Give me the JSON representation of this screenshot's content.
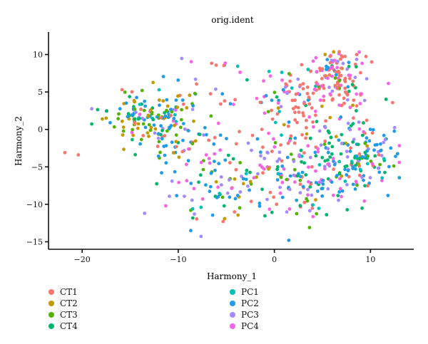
{
  "chart_data": {
    "type": "scatter",
    "title": "orig.ident",
    "xlabel": "Harmony_1",
    "ylabel": "Harmony_2",
    "xlim": [
      -23.5,
      14.5
    ],
    "ylim": [
      -16,
      13
    ],
    "x_ticks": [
      -20,
      -10,
      0,
      10
    ],
    "y_ticks": [
      -15,
      -10,
      -5,
      0,
      5,
      10
    ],
    "x_tick_labels": [
      "−20",
      "−10",
      "0",
      "10"
    ],
    "y_tick_labels": [
      "−15",
      "−10",
      "−5",
      "0",
      "5",
      "10"
    ],
    "grid": false,
    "legend_position": "bottom",
    "series": [
      {
        "name": "CT1",
        "color": "#f8766d"
      },
      {
        "name": "CT2",
        "color": "#c49a00"
      },
      {
        "name": "CT3",
        "color": "#53b400"
      },
      {
        "name": "CT4",
        "color": "#00b56c"
      },
      {
        "name": "PC1",
        "color": "#00c0b8"
      },
      {
        "name": "PC2",
        "color": "#1f9be8"
      },
      {
        "name": "PC3",
        "color": "#a58aff"
      },
      {
        "name": "PC4",
        "color": "#f564e3"
      }
    ],
    "clusters": [
      {
        "center": [
          -13,
          2
        ],
        "sd": [
          2.3,
          1.8
        ],
        "n": 150,
        "mix": [
          0.06,
          0.18,
          0.18,
          0.16,
          0.05,
          0.27,
          0.05,
          0.05
        ]
      },
      {
        "center": [
          -9,
          -2
        ],
        "sd": [
          2.2,
          2.3
        ],
        "n": 55,
        "mix": [
          0.08,
          0.1,
          0.12,
          0.12,
          0.05,
          0.33,
          0.1,
          0.1
        ]
      },
      {
        "center": [
          -6,
          -9
        ],
        "sd": [
          2.8,
          2.2
        ],
        "n": 45,
        "mix": [
          0.05,
          0.06,
          0.12,
          0.1,
          0.05,
          0.32,
          0.2,
          0.1
        ]
      },
      {
        "center": [
          5.5,
          5
        ],
        "sd": [
          2.6,
          2.6
        ],
        "n": 110,
        "mix": [
          0.55,
          0.03,
          0.03,
          0.04,
          0.03,
          0.05,
          0.1,
          0.17
        ]
      },
      {
        "center": [
          6.5,
          8.5
        ],
        "sd": [
          1.2,
          1.2
        ],
        "n": 60,
        "mix": [
          0.4,
          0.05,
          0.05,
          0.05,
          0.02,
          0.05,
          0.13,
          0.25
        ]
      },
      {
        "center": [
          2,
          2
        ],
        "sd": [
          2,
          3
        ],
        "n": 55,
        "mix": [
          0.6,
          0.03,
          0.03,
          0.05,
          0.02,
          0.08,
          0.07,
          0.12
        ]
      },
      {
        "center": [
          9,
          -3
        ],
        "sd": [
          2.3,
          2.2
        ],
        "n": 130,
        "mix": [
          0.07,
          0.04,
          0.06,
          0.33,
          0.03,
          0.3,
          0.12,
          0.15
        ]
      },
      {
        "center": [
          4,
          -7
        ],
        "sd": [
          3.5,
          2.6
        ],
        "n": 150,
        "mix": [
          0.12,
          0.04,
          0.06,
          0.17,
          0.03,
          0.22,
          0.19,
          0.17
        ]
      },
      {
        "center": [
          -2,
          -5
        ],
        "sd": [
          3.5,
          3.5
        ],
        "n": 80,
        "mix": [
          0.22,
          0.05,
          0.07,
          0.12,
          0.03,
          0.23,
          0.14,
          0.14
        ]
      },
      {
        "center": [
          -4,
          6
        ],
        "sd": [
          3,
          2.5
        ],
        "n": 30,
        "mix": [
          0.25,
          0.05,
          0.05,
          0.05,
          0.03,
          0.27,
          0.15,
          0.15
        ]
      }
    ],
    "extra_points": [
      {
        "x": -21.8,
        "y": -3.1,
        "series": "CT1"
      },
      {
        "x": -20.4,
        "y": -3.4,
        "series": "CT1"
      },
      {
        "x": -17.5,
        "y": 1.5,
        "series": "CT2"
      },
      {
        "x": 1.5,
        "y": -14.8,
        "series": "PC2"
      },
      {
        "x": -13.5,
        "y": -11.2,
        "series": "PC3"
      },
      {
        "x": -8.7,
        "y": -13.5,
        "series": "PC2"
      }
    ]
  }
}
